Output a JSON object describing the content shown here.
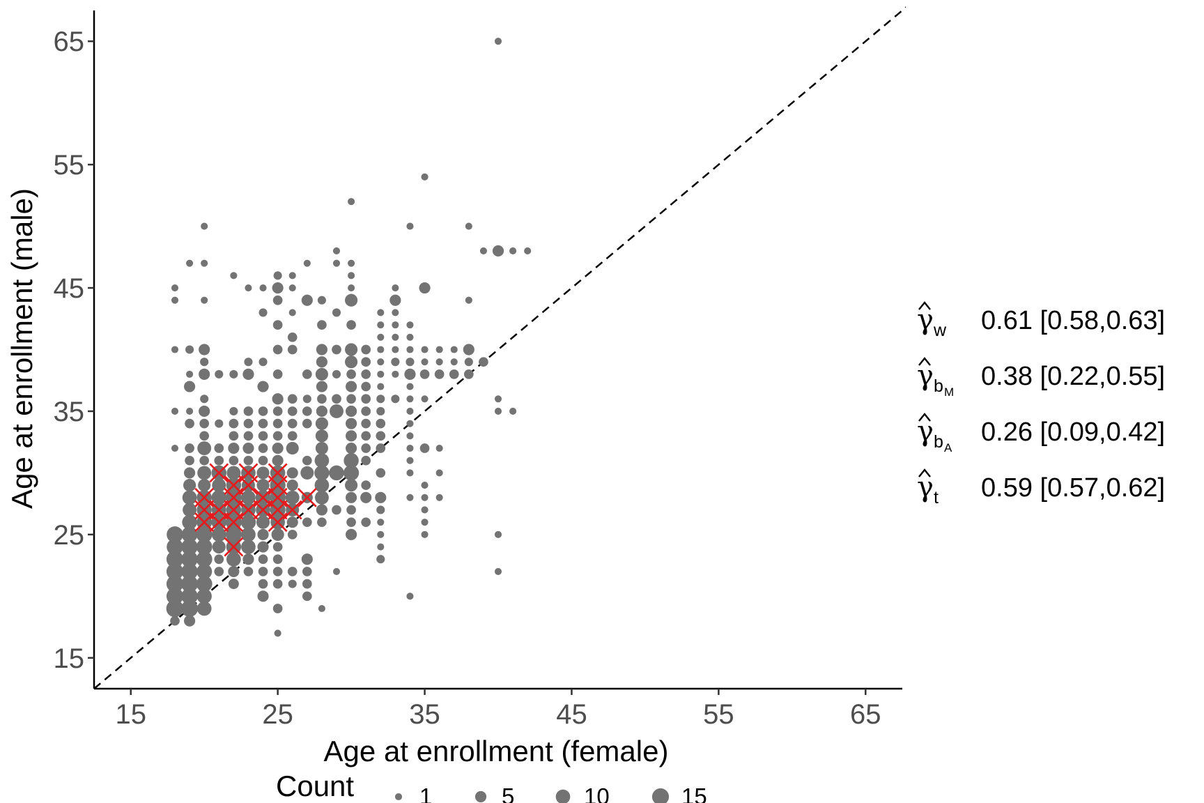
{
  "chart_data": {
    "type": "scatter",
    "title": "",
    "xlabel": "Age at enrollment (female)",
    "ylabel": "Age at enrollment (male)",
    "xlim": [
      12.5,
      67.5
    ],
    "ylim": [
      12.5,
      67.5
    ],
    "xticks": [
      "15",
      "25",
      "35",
      "45",
      "55",
      "65"
    ],
    "yticks": [
      "15",
      "25",
      "35",
      "45",
      "55",
      "65"
    ],
    "grid": false,
    "reference_line": {
      "type": "identity",
      "style": "dashed",
      "color": "#000000"
    },
    "point_color": "#737373",
    "highlight_color": "#e41a1c",
    "size_legend": {
      "title": "Count",
      "placement": "bottom",
      "entries": [
        {
          "label": "1",
          "count": 1
        },
        {
          "label": "5",
          "count": 5
        },
        {
          "label": "10",
          "count": 10
        },
        {
          "label": "15",
          "count": 15
        }
      ]
    },
    "points": [
      [
        18,
        19,
        16
      ],
      [
        18,
        20,
        15
      ],
      [
        18,
        21,
        15
      ],
      [
        18,
        22,
        15
      ],
      [
        18,
        23,
        15
      ],
      [
        18,
        24,
        14
      ],
      [
        18,
        25,
        14
      ],
      [
        18,
        18,
        3
      ],
      [
        18,
        32,
        1
      ],
      [
        18,
        35,
        1
      ],
      [
        18,
        40,
        1
      ],
      [
        18,
        44,
        1
      ],
      [
        18,
        45,
        1
      ],
      [
        19,
        18,
        5
      ],
      [
        19,
        19,
        15
      ],
      [
        19,
        20,
        14
      ],
      [
        19,
        21,
        15
      ],
      [
        19,
        22,
        14
      ],
      [
        19,
        23,
        14
      ],
      [
        19,
        24,
        14
      ],
      [
        19,
        25,
        13
      ],
      [
        19,
        26,
        11
      ],
      [
        19,
        27,
        9
      ],
      [
        19,
        28,
        10
      ],
      [
        19,
        29,
        7
      ],
      [
        19,
        30,
        5
      ],
      [
        19,
        31,
        3
      ],
      [
        19,
        32,
        3
      ],
      [
        19,
        34,
        3
      ],
      [
        19,
        35,
        1
      ],
      [
        19,
        37,
        5
      ],
      [
        19,
        38,
        1
      ],
      [
        19,
        40,
        2
      ],
      [
        19,
        47,
        1
      ],
      [
        20,
        19,
        10
      ],
      [
        20,
        20,
        11
      ],
      [
        20,
        21,
        13
      ],
      [
        20,
        22,
        12
      ],
      [
        20,
        23,
        13
      ],
      [
        20,
        24,
        13
      ],
      [
        20,
        25,
        13
      ],
      [
        20,
        26,
        12
      ],
      [
        20,
        27,
        11
      ],
      [
        20,
        28,
        11
      ],
      [
        20,
        29,
        7
      ],
      [
        20,
        30,
        9
      ],
      [
        20,
        31,
        3
      ],
      [
        20,
        32,
        9
      ],
      [
        20,
        33,
        3
      ],
      [
        20,
        34,
        3
      ],
      [
        20,
        35,
        5
      ],
      [
        20,
        36,
        2
      ],
      [
        20,
        38,
        5
      ],
      [
        20,
        39,
        2
      ],
      [
        20,
        40,
        5
      ],
      [
        20,
        44,
        1
      ],
      [
        20,
        47,
        1
      ],
      [
        20,
        50,
        1
      ],
      [
        21,
        22,
        3
      ],
      [
        21,
        23,
        3
      ],
      [
        21,
        24,
        8
      ],
      [
        21,
        25,
        10
      ],
      [
        21,
        26,
        11
      ],
      [
        21,
        27,
        10
      ],
      [
        21,
        28,
        11
      ],
      [
        21,
        29,
        9
      ],
      [
        21,
        30,
        11
      ],
      [
        21,
        31,
        3
      ],
      [
        21,
        32,
        3
      ],
      [
        21,
        34,
        2
      ],
      [
        21,
        38,
        2
      ],
      [
        22,
        21,
        4
      ],
      [
        22,
        22,
        5
      ],
      [
        22,
        23,
        10
      ],
      [
        22,
        24,
        11
      ],
      [
        22,
        25,
        13
      ],
      [
        22,
        26,
        13
      ],
      [
        22,
        27,
        11
      ],
      [
        22,
        28,
        13
      ],
      [
        22,
        29,
        11
      ],
      [
        22,
        30,
        9
      ],
      [
        22,
        31,
        3
      ],
      [
        22,
        32,
        5
      ],
      [
        22,
        33,
        3
      ],
      [
        22,
        34,
        3
      ],
      [
        22,
        35,
        2
      ],
      [
        22,
        38,
        2
      ],
      [
        22,
        46,
        1
      ],
      [
        23,
        22,
        3
      ],
      [
        23,
        23,
        5
      ],
      [
        23,
        24,
        10
      ],
      [
        23,
        25,
        10
      ],
      [
        23,
        26,
        11
      ],
      [
        23,
        27,
        10
      ],
      [
        23,
        28,
        10
      ],
      [
        23,
        29,
        8
      ],
      [
        23,
        30,
        10
      ],
      [
        23,
        31,
        3
      ],
      [
        23,
        32,
        5
      ],
      [
        23,
        33,
        3
      ],
      [
        23,
        34,
        3
      ],
      [
        23,
        35,
        3
      ],
      [
        23,
        38,
        5
      ],
      [
        23,
        39,
        2
      ],
      [
        23,
        45,
        1
      ],
      [
        24,
        21,
        3
      ],
      [
        24,
        22,
        3
      ],
      [
        24,
        23,
        3
      ],
      [
        24,
        24,
        5
      ],
      [
        24,
        25,
        5
      ],
      [
        24,
        26,
        8
      ],
      [
        24,
        27,
        10
      ],
      [
        24,
        28,
        11
      ],
      [
        24,
        29,
        7
      ],
      [
        24,
        30,
        7
      ],
      [
        24,
        31,
        3
      ],
      [
        24,
        32,
        3
      ],
      [
        24,
        33,
        3
      ],
      [
        24,
        34,
        3
      ],
      [
        24,
        35,
        3
      ],
      [
        24,
        37,
        5
      ],
      [
        24,
        39,
        2
      ],
      [
        24,
        43,
        2
      ],
      [
        24,
        45,
        1
      ],
      [
        24,
        20,
        5
      ],
      [
        25,
        17,
        1
      ],
      [
        25,
        19,
        3
      ],
      [
        25,
        21,
        3
      ],
      [
        25,
        22,
        3
      ],
      [
        25,
        23,
        3
      ],
      [
        25,
        24,
        3
      ],
      [
        25,
        25,
        7
      ],
      [
        25,
        26,
        10
      ],
      [
        25,
        27,
        12
      ],
      [
        25,
        28,
        13
      ],
      [
        25,
        29,
        12
      ],
      [
        25,
        30,
        11
      ],
      [
        25,
        31,
        5
      ],
      [
        25,
        32,
        5
      ],
      [
        25,
        33,
        3
      ],
      [
        25,
        34,
        3
      ],
      [
        25,
        35,
        3
      ],
      [
        25,
        36,
        5
      ],
      [
        25,
        38,
        3
      ],
      [
        25,
        40,
        3
      ],
      [
        25,
        42,
        3
      ],
      [
        25,
        44,
        3
      ],
      [
        25,
        45,
        5
      ],
      [
        25,
        46,
        2
      ],
      [
        26,
        21,
        2
      ],
      [
        26,
        22,
        3
      ],
      [
        26,
        25,
        3
      ],
      [
        26,
        26,
        5
      ],
      [
        26,
        27,
        8
      ],
      [
        26,
        28,
        9
      ],
      [
        26,
        29,
        5
      ],
      [
        26,
        30,
        5
      ],
      [
        26,
        32,
        7
      ],
      [
        26,
        33,
        3
      ],
      [
        26,
        34,
        3
      ],
      [
        26,
        35,
        3
      ],
      [
        26,
        36,
        3
      ],
      [
        26,
        40,
        3
      ],
      [
        26,
        41,
        3
      ],
      [
        26,
        43,
        1
      ],
      [
        26,
        45,
        1
      ],
      [
        26,
        46,
        1
      ],
      [
        27,
        20,
        3
      ],
      [
        27,
        21,
        3
      ],
      [
        27,
        22,
        3
      ],
      [
        27,
        23,
        5
      ],
      [
        27,
        26,
        3
      ],
      [
        27,
        28,
        5
      ],
      [
        27,
        30,
        8
      ],
      [
        27,
        31,
        3
      ],
      [
        27,
        34,
        3
      ],
      [
        27,
        35,
        3
      ],
      [
        27,
        36,
        2
      ],
      [
        27,
        38,
        3
      ],
      [
        27,
        44,
        5
      ],
      [
        27,
        47,
        1
      ],
      [
        28,
        19,
        1
      ],
      [
        28,
        26,
        3
      ],
      [
        28,
        27,
        5
      ],
      [
        28,
        28,
        9
      ],
      [
        28,
        29,
        10
      ],
      [
        28,
        30,
        11
      ],
      [
        28,
        31,
        10
      ],
      [
        28,
        32,
        7
      ],
      [
        28,
        33,
        7
      ],
      [
        28,
        34,
        7
      ],
      [
        28,
        35,
        5
      ],
      [
        28,
        36,
        3
      ],
      [
        28,
        37,
        5
      ],
      [
        28,
        38,
        7
      ],
      [
        28,
        39,
        5
      ],
      [
        28,
        40,
        5
      ],
      [
        28,
        42,
        3
      ],
      [
        28,
        44,
        2
      ],
      [
        29,
        22,
        1
      ],
      [
        29,
        27,
        3
      ],
      [
        29,
        30,
        11
      ],
      [
        29,
        35,
        9
      ],
      [
        29,
        36,
        3
      ],
      [
        29,
        38,
        2
      ],
      [
        29,
        40,
        3
      ],
      [
        29,
        43,
        2
      ],
      [
        29,
        47,
        1
      ],
      [
        29,
        48,
        1
      ],
      [
        30,
        25,
        5
      ],
      [
        30,
        26,
        3
      ],
      [
        30,
        27,
        3
      ],
      [
        30,
        28,
        5
      ],
      [
        30,
        29,
        7
      ],
      [
        30,
        30,
        12
      ],
      [
        30,
        31,
        11
      ],
      [
        30,
        32,
        5
      ],
      [
        30,
        33,
        5
      ],
      [
        30,
        34,
        5
      ],
      [
        30,
        35,
        5
      ],
      [
        30,
        36,
        3
      ],
      [
        30,
        37,
        5
      ],
      [
        30,
        38,
        3
      ],
      [
        30,
        39,
        7
      ],
      [
        30,
        40,
        7
      ],
      [
        30,
        42,
        3
      ],
      [
        30,
        44,
        7
      ],
      [
        30,
        45,
        1
      ],
      [
        30,
        46,
        1
      ],
      [
        30,
        47,
        1
      ],
      [
        30,
        52,
        1
      ],
      [
        31,
        26,
        3
      ],
      [
        31,
        28,
        5
      ],
      [
        31,
        29,
        3
      ],
      [
        31,
        31,
        3
      ],
      [
        31,
        32,
        3
      ],
      [
        31,
        33,
        3
      ],
      [
        31,
        34,
        3
      ],
      [
        31,
        35,
        3
      ],
      [
        31,
        36,
        3
      ],
      [
        31,
        37,
        3
      ],
      [
        31,
        38,
        3
      ],
      [
        31,
        39,
        3
      ],
      [
        31,
        40,
        3
      ],
      [
        32,
        23,
        2
      ],
      [
        32,
        24,
        1
      ],
      [
        32,
        25,
        1
      ],
      [
        32,
        26,
        1
      ],
      [
        32,
        27,
        2
      ],
      [
        32,
        28,
        5
      ],
      [
        32,
        30,
        3
      ],
      [
        32,
        32,
        3
      ],
      [
        32,
        33,
        3
      ],
      [
        32,
        34,
        3
      ],
      [
        32,
        35,
        2
      ],
      [
        32,
        36,
        2
      ],
      [
        32,
        37,
        1
      ],
      [
        32,
        38,
        1
      ],
      [
        32,
        39,
        1
      ],
      [
        32,
        40,
        1
      ],
      [
        32,
        41,
        1
      ],
      [
        32,
        42,
        1
      ],
      [
        32,
        43,
        1
      ],
      [
        33,
        36,
        2
      ],
      [
        33,
        38,
        1
      ],
      [
        33,
        39,
        2
      ],
      [
        33,
        40,
        1
      ],
      [
        33,
        41,
        1
      ],
      [
        33,
        42,
        1
      ],
      [
        33,
        43,
        1
      ],
      [
        33,
        44,
        5
      ],
      [
        33,
        45,
        1
      ],
      [
        34,
        28,
        1
      ],
      [
        34,
        30,
        1
      ],
      [
        34,
        31,
        1
      ],
      [
        34,
        32,
        1
      ],
      [
        34,
        33,
        1
      ],
      [
        34,
        34,
        1
      ],
      [
        34,
        35,
        1
      ],
      [
        34,
        36,
        1
      ],
      [
        34,
        37,
        1
      ],
      [
        34,
        38,
        5
      ],
      [
        34,
        39,
        2
      ],
      [
        34,
        40,
        1
      ],
      [
        34,
        41,
        1
      ],
      [
        34,
        42,
        1
      ],
      [
        34,
        50,
        1
      ],
      [
        34,
        20,
        1
      ],
      [
        35,
        25,
        1
      ],
      [
        35,
        26,
        1
      ],
      [
        35,
        27,
        1
      ],
      [
        35,
        28,
        1
      ],
      [
        35,
        29,
        1
      ],
      [
        35,
        32,
        3
      ],
      [
        35,
        36,
        1
      ],
      [
        35,
        38,
        3
      ],
      [
        35,
        39,
        1
      ],
      [
        35,
        40,
        1
      ],
      [
        35,
        45,
        5
      ],
      [
        35,
        54,
        1
      ],
      [
        36,
        28,
        1
      ],
      [
        36,
        30,
        1
      ],
      [
        36,
        32,
        1
      ],
      [
        36,
        38,
        3
      ],
      [
        36,
        39,
        1
      ],
      [
        36,
        40,
        1
      ],
      [
        37,
        38,
        3
      ],
      [
        37,
        39,
        1
      ],
      [
        37,
        40,
        1
      ],
      [
        38,
        38,
        3
      ],
      [
        38,
        39,
        2
      ],
      [
        38,
        40,
        5
      ],
      [
        38,
        44,
        1
      ],
      [
        38,
        50,
        1
      ],
      [
        39,
        39,
        3
      ],
      [
        39,
        48,
        1
      ],
      [
        40,
        22,
        1
      ],
      [
        40,
        25,
        1
      ],
      [
        40,
        35,
        1
      ],
      [
        40,
        36,
        1
      ],
      [
        40,
        48,
        5
      ],
      [
        40,
        65,
        1
      ],
      [
        41,
        35,
        1
      ],
      [
        41,
        48,
        1
      ],
      [
        42,
        48,
        1
      ]
    ],
    "highlights": [
      [
        20,
        26
      ],
      [
        20,
        27
      ],
      [
        20,
        28
      ],
      [
        21,
        26
      ],
      [
        21,
        27
      ],
      [
        21,
        30
      ],
      [
        22,
        24
      ],
      [
        22,
        26
      ],
      [
        22,
        27
      ],
      [
        22,
        28
      ],
      [
        22,
        29
      ],
      [
        23,
        27
      ],
      [
        23,
        29
      ],
      [
        23,
        30
      ],
      [
        24,
        27
      ],
      [
        24,
        28
      ],
      [
        25,
        26
      ],
      [
        25,
        27
      ],
      [
        25,
        28
      ],
      [
        25,
        29
      ],
      [
        25,
        30
      ],
      [
        26,
        27
      ],
      [
        27,
        28
      ]
    ]
  },
  "stats": [
    {
      "symbol": "γ",
      "sub": "w",
      "sub2": "",
      "value": "0.61 [0.58,0.63]"
    },
    {
      "symbol": "γ",
      "sub": "b",
      "sub2": "M",
      "value": "0.38 [0.22,0.55]"
    },
    {
      "symbol": "γ",
      "sub": "b",
      "sub2": "A",
      "value": "0.26 [0.09,0.42]"
    },
    {
      "symbol": "γ",
      "sub": "t",
      "sub2": "",
      "value": "0.59 [0.57,0.62]"
    }
  ]
}
